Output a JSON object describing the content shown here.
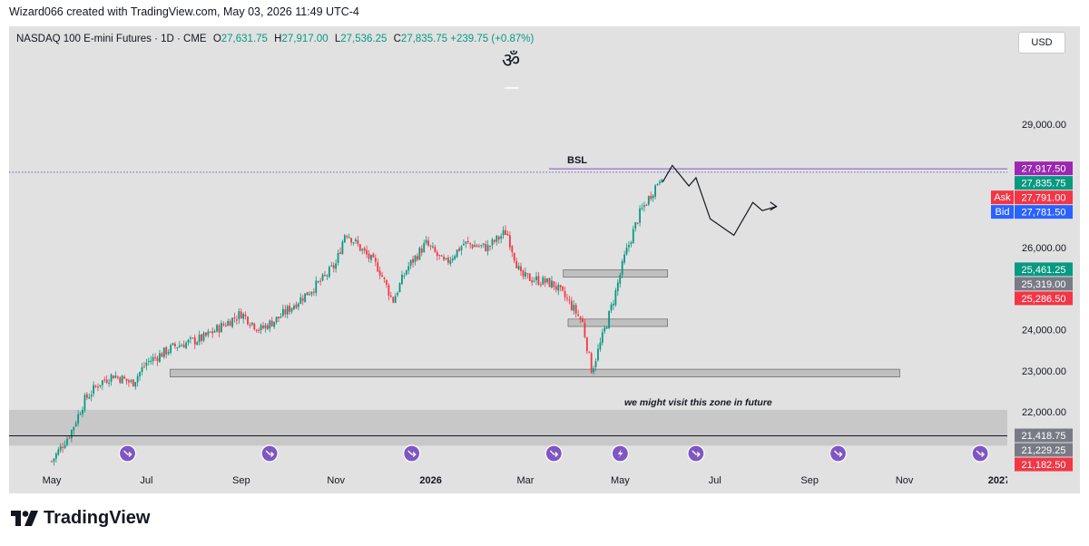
{
  "header": {
    "credit": "Wizard066 created with TradingView.com, May 03, 2026 11:49 UTC-4"
  },
  "legend": {
    "symbol": "NASDAQ 100 E-mini Futures · 1D · CME",
    "open_label": "O",
    "open": "27,631.75",
    "high_label": "H",
    "high": "27,917.00",
    "low_label": "L",
    "low": "27,536.25",
    "close_label": "C",
    "close": "27,835.75",
    "change": "+239.75 (+0.87%)"
  },
  "currency_button": "USD",
  "om_symbol": "ॐ",
  "annotations": {
    "bsl": "BSL",
    "zone_note": "we might visit this zone in future"
  },
  "price_tags": [
    {
      "label": "",
      "value": "27,917.50",
      "color": "#9c27b0",
      "price": 27917.5
    },
    {
      "label": "",
      "value": "27,835.75",
      "color": "#089981",
      "price": 27835.75
    },
    {
      "label": "Ask",
      "value": "27,791.00",
      "color": "#f23645",
      "price": 27791
    },
    {
      "label": "Bid",
      "value": "27,781.50",
      "color": "#2962ff",
      "price": 27781.5
    },
    {
      "label": "",
      "value": "25,461.25",
      "color": "#089981",
      "price": 25461.25
    },
    {
      "label": "",
      "value": "25,319.00",
      "color": "#787b86",
      "price": 25319
    },
    {
      "label": "",
      "value": "25,286.50",
      "color": "#f23645",
      "price": 25286.5
    },
    {
      "label": "",
      "value": "21,418.75",
      "color": "#787b86",
      "price": 21418.75
    },
    {
      "label": "",
      "value": "21,229.25",
      "color": "#787b86",
      "price": 21229.25
    },
    {
      "label": "",
      "value": "21,182.50",
      "color": "#f23645",
      "price": 21182.5
    }
  ],
  "footer": {
    "brand": "TradingView"
  },
  "colors": {
    "up": "#089981",
    "down": "#f23645",
    "bg": "#e1e1e1",
    "zone": "#c5c5c5",
    "event_icon": "#7e57c2"
  },
  "chart_data": {
    "type": "candlestick",
    "symbol": "NASDAQ 100 E-mini Futures",
    "interval": "1D",
    "y_ticks": [
      {
        "value": 29000,
        "label": "29,000.00"
      },
      {
        "value": 26000,
        "label": "26,000.00"
      },
      {
        "value": 24000,
        "label": "24,000.00"
      },
      {
        "value": 23000,
        "label": "23,000.00"
      },
      {
        "value": 22000,
        "label": "22,000.00"
      }
    ],
    "x_ticks": [
      "May",
      "Jul",
      "Sep",
      "Nov",
      "2026",
      "Mar",
      "May",
      "Jul",
      "Sep",
      "Nov",
      "2027"
    ],
    "x_tick_months": [
      0,
      2,
      4,
      6,
      8,
      10,
      12,
      14,
      16,
      18,
      20
    ],
    "price_path": [
      [
        0.0,
        20800
      ],
      [
        0.4,
        21500
      ],
      [
        0.7,
        22300
      ],
      [
        1.0,
        22700
      ],
      [
        1.3,
        22900
      ],
      [
        1.7,
        22700
      ],
      [
        2.0,
        23200
      ],
      [
        2.6,
        23600
      ],
      [
        3.2,
        23800
      ],
      [
        3.6,
        24100
      ],
      [
        4.0,
        24400
      ],
      [
        4.4,
        24000
      ],
      [
        4.8,
        24300
      ],
      [
        5.3,
        24800
      ],
      [
        5.7,
        25200
      ],
      [
        6.0,
        25600
      ],
      [
        6.2,
        26400
      ],
      [
        6.5,
        26000
      ],
      [
        6.9,
        25500
      ],
      [
        7.2,
        24700
      ],
      [
        7.5,
        25500
      ],
      [
        7.9,
        26100
      ],
      [
        8.3,
        25600
      ],
      [
        8.7,
        26100
      ],
      [
        9.2,
        26000
      ],
      [
        9.6,
        26400
      ],
      [
        9.9,
        25300
      ],
      [
        10.3,
        25200
      ],
      [
        10.6,
        25100
      ],
      [
        10.9,
        24700
      ],
      [
        11.2,
        24200
      ],
      [
        11.4,
        23000
      ],
      [
        11.7,
        24100
      ],
      [
        11.9,
        24900
      ],
      [
        12.1,
        25800
      ],
      [
        12.4,
        26800
      ],
      [
        12.7,
        27400
      ],
      [
        12.9,
        27835
      ]
    ],
    "zones": [
      {
        "from_month": 10.8,
        "to_month": 13.0,
        "low": 25280,
        "high": 25460
      },
      {
        "from_month": 10.9,
        "to_month": 13.0,
        "low": 24080,
        "high": 24260
      },
      {
        "from_month": 2.5,
        "to_month": 17.9,
        "low": 22850,
        "high": 23040
      },
      {
        "from_month": -1.0,
        "to_month": 21.2,
        "low": 21180,
        "high": 22050
      }
    ],
    "horizontal_lines": [
      {
        "price": 27917.5,
        "label": "BSL",
        "style": "solid",
        "color": "#7e57c2"
      },
      {
        "price": 27835.75,
        "style": "dotted",
        "color": "#7e57c2"
      },
      {
        "price": 21418.75,
        "style": "solid",
        "color": "#131722"
      }
    ],
    "projection_path": [
      [
        12.9,
        27600
      ],
      [
        13.1,
        28000
      ],
      [
        13.45,
        27500
      ],
      [
        13.6,
        27700
      ],
      [
        13.9,
        26700
      ],
      [
        14.4,
        26300
      ],
      [
        14.8,
        27100
      ],
      [
        15.0,
        26900
      ],
      [
        15.3,
        27000
      ]
    ],
    "event_markers": [
      {
        "month": 1.6,
        "type": "dividend"
      },
      {
        "month": 4.6,
        "type": "dividend"
      },
      {
        "month": 7.6,
        "type": "dividend"
      },
      {
        "month": 10.6,
        "type": "dividend"
      },
      {
        "month": 12.0,
        "type": "earnings"
      },
      {
        "month": 13.6,
        "type": "dividend"
      },
      {
        "month": 16.6,
        "type": "dividend"
      },
      {
        "month": 19.6,
        "type": "dividend"
      }
    ]
  }
}
